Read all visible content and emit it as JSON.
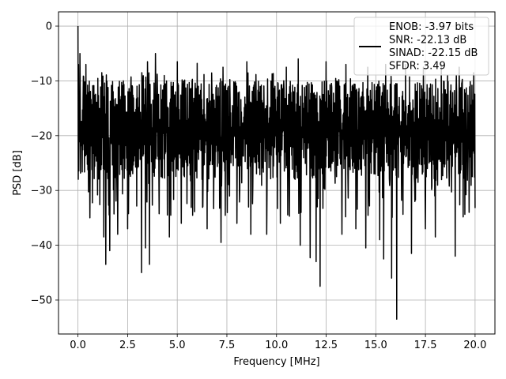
{
  "chart_data": {
    "type": "line",
    "title": "",
    "xlabel": "Frequency [MHz]",
    "ylabel": "PSD [dB]",
    "xlim": [
      -0.98,
      21.0
    ],
    "ylim": [
      -56.2,
      2.6
    ],
    "xticks": [
      0.0,
      2.5,
      5.0,
      7.5,
      10.0,
      12.5,
      15.0,
      17.5,
      20.0
    ],
    "xtick_labels": [
      "0.0",
      "2.5",
      "5.0",
      "7.5",
      "10.0",
      "12.5",
      "15.0",
      "17.5",
      "20.0"
    ],
    "yticks": [
      0,
      -10,
      -20,
      -30,
      -40,
      -50
    ],
    "ytick_labels": [
      "0",
      "−10",
      "−20",
      "−30",
      "−40",
      "−50"
    ],
    "grid": true,
    "legend_position": "top-right",
    "legend_lines": [
      "ENOB: -3.97 bits",
      "SNR: -22.13 dB",
      "SINAD: -22.15 dB",
      "SFDR: 3.49"
    ],
    "series": [
      {
        "color": "#000000",
        "x_range": [
          0.0,
          20.0
        ],
        "notes": "dense noise spectrum; band roughly -28 to -10 dB; peak 0 dB at 0 MHz; deepest notch about -53.5 dB near 16.0 MHz",
        "peaks": [
          [
            0.0,
            0.0
          ],
          [
            0.03,
            -7.0
          ],
          [
            0.1,
            -5.0
          ]
        ],
        "dips": [
          [
            0.6,
            -35.0
          ],
          [
            1.3,
            -38.5
          ],
          [
            1.4,
            -43.5
          ],
          [
            1.6,
            -41.0
          ],
          [
            2.0,
            -38.0
          ],
          [
            2.5,
            -37.0
          ],
          [
            3.2,
            -45.0
          ],
          [
            3.4,
            -40.5
          ],
          [
            3.6,
            -43.5
          ],
          [
            4.5,
            -34.5
          ],
          [
            4.6,
            -38.5
          ],
          [
            5.2,
            -36.0
          ],
          [
            6.5,
            -37.0
          ],
          [
            7.2,
            -39.5
          ],
          [
            8.0,
            -36.0
          ],
          [
            8.7,
            -38.0
          ],
          [
            9.5,
            -38.0
          ],
          [
            10.2,
            -36.0
          ],
          [
            11.2,
            -40.0
          ],
          [
            11.7,
            -42.3
          ],
          [
            12.0,
            -43.0
          ],
          [
            12.2,
            -47.5
          ],
          [
            13.3,
            -38.0
          ],
          [
            14.0,
            -37.0
          ],
          [
            14.5,
            -40.5
          ],
          [
            15.2,
            -39.0
          ],
          [
            15.4,
            -42.5
          ],
          [
            15.8,
            -46.0
          ],
          [
            16.05,
            -53.5
          ],
          [
            16.8,
            -41.5
          ],
          [
            17.5,
            -37.0
          ],
          [
            18.0,
            -38.5
          ],
          [
            19.0,
            -42.0
          ],
          [
            19.7,
            -34.0
          ]
        ],
        "highs": [
          [
            0.4,
            -7.0
          ],
          [
            1.2,
            -8.5
          ],
          [
            2.5,
            -8.0
          ],
          [
            3.5,
            -6.5
          ],
          [
            3.9,
            -5.0
          ],
          [
            5.0,
            -6.5
          ],
          [
            6.0,
            -6.8
          ],
          [
            7.3,
            -7.5
          ],
          [
            8.5,
            -6.5
          ],
          [
            9.5,
            -6.5
          ],
          [
            10.5,
            -7.5
          ],
          [
            11.1,
            -6.0
          ],
          [
            12.5,
            -6.5
          ],
          [
            13.5,
            -7.0
          ],
          [
            14.6,
            -7.5
          ],
          [
            15.5,
            -7.0
          ],
          [
            16.5,
            -7.0
          ],
          [
            17.4,
            -7.5
          ],
          [
            18.3,
            -7.0
          ],
          [
            19.2,
            -7.5
          ]
        ]
      }
    ]
  }
}
